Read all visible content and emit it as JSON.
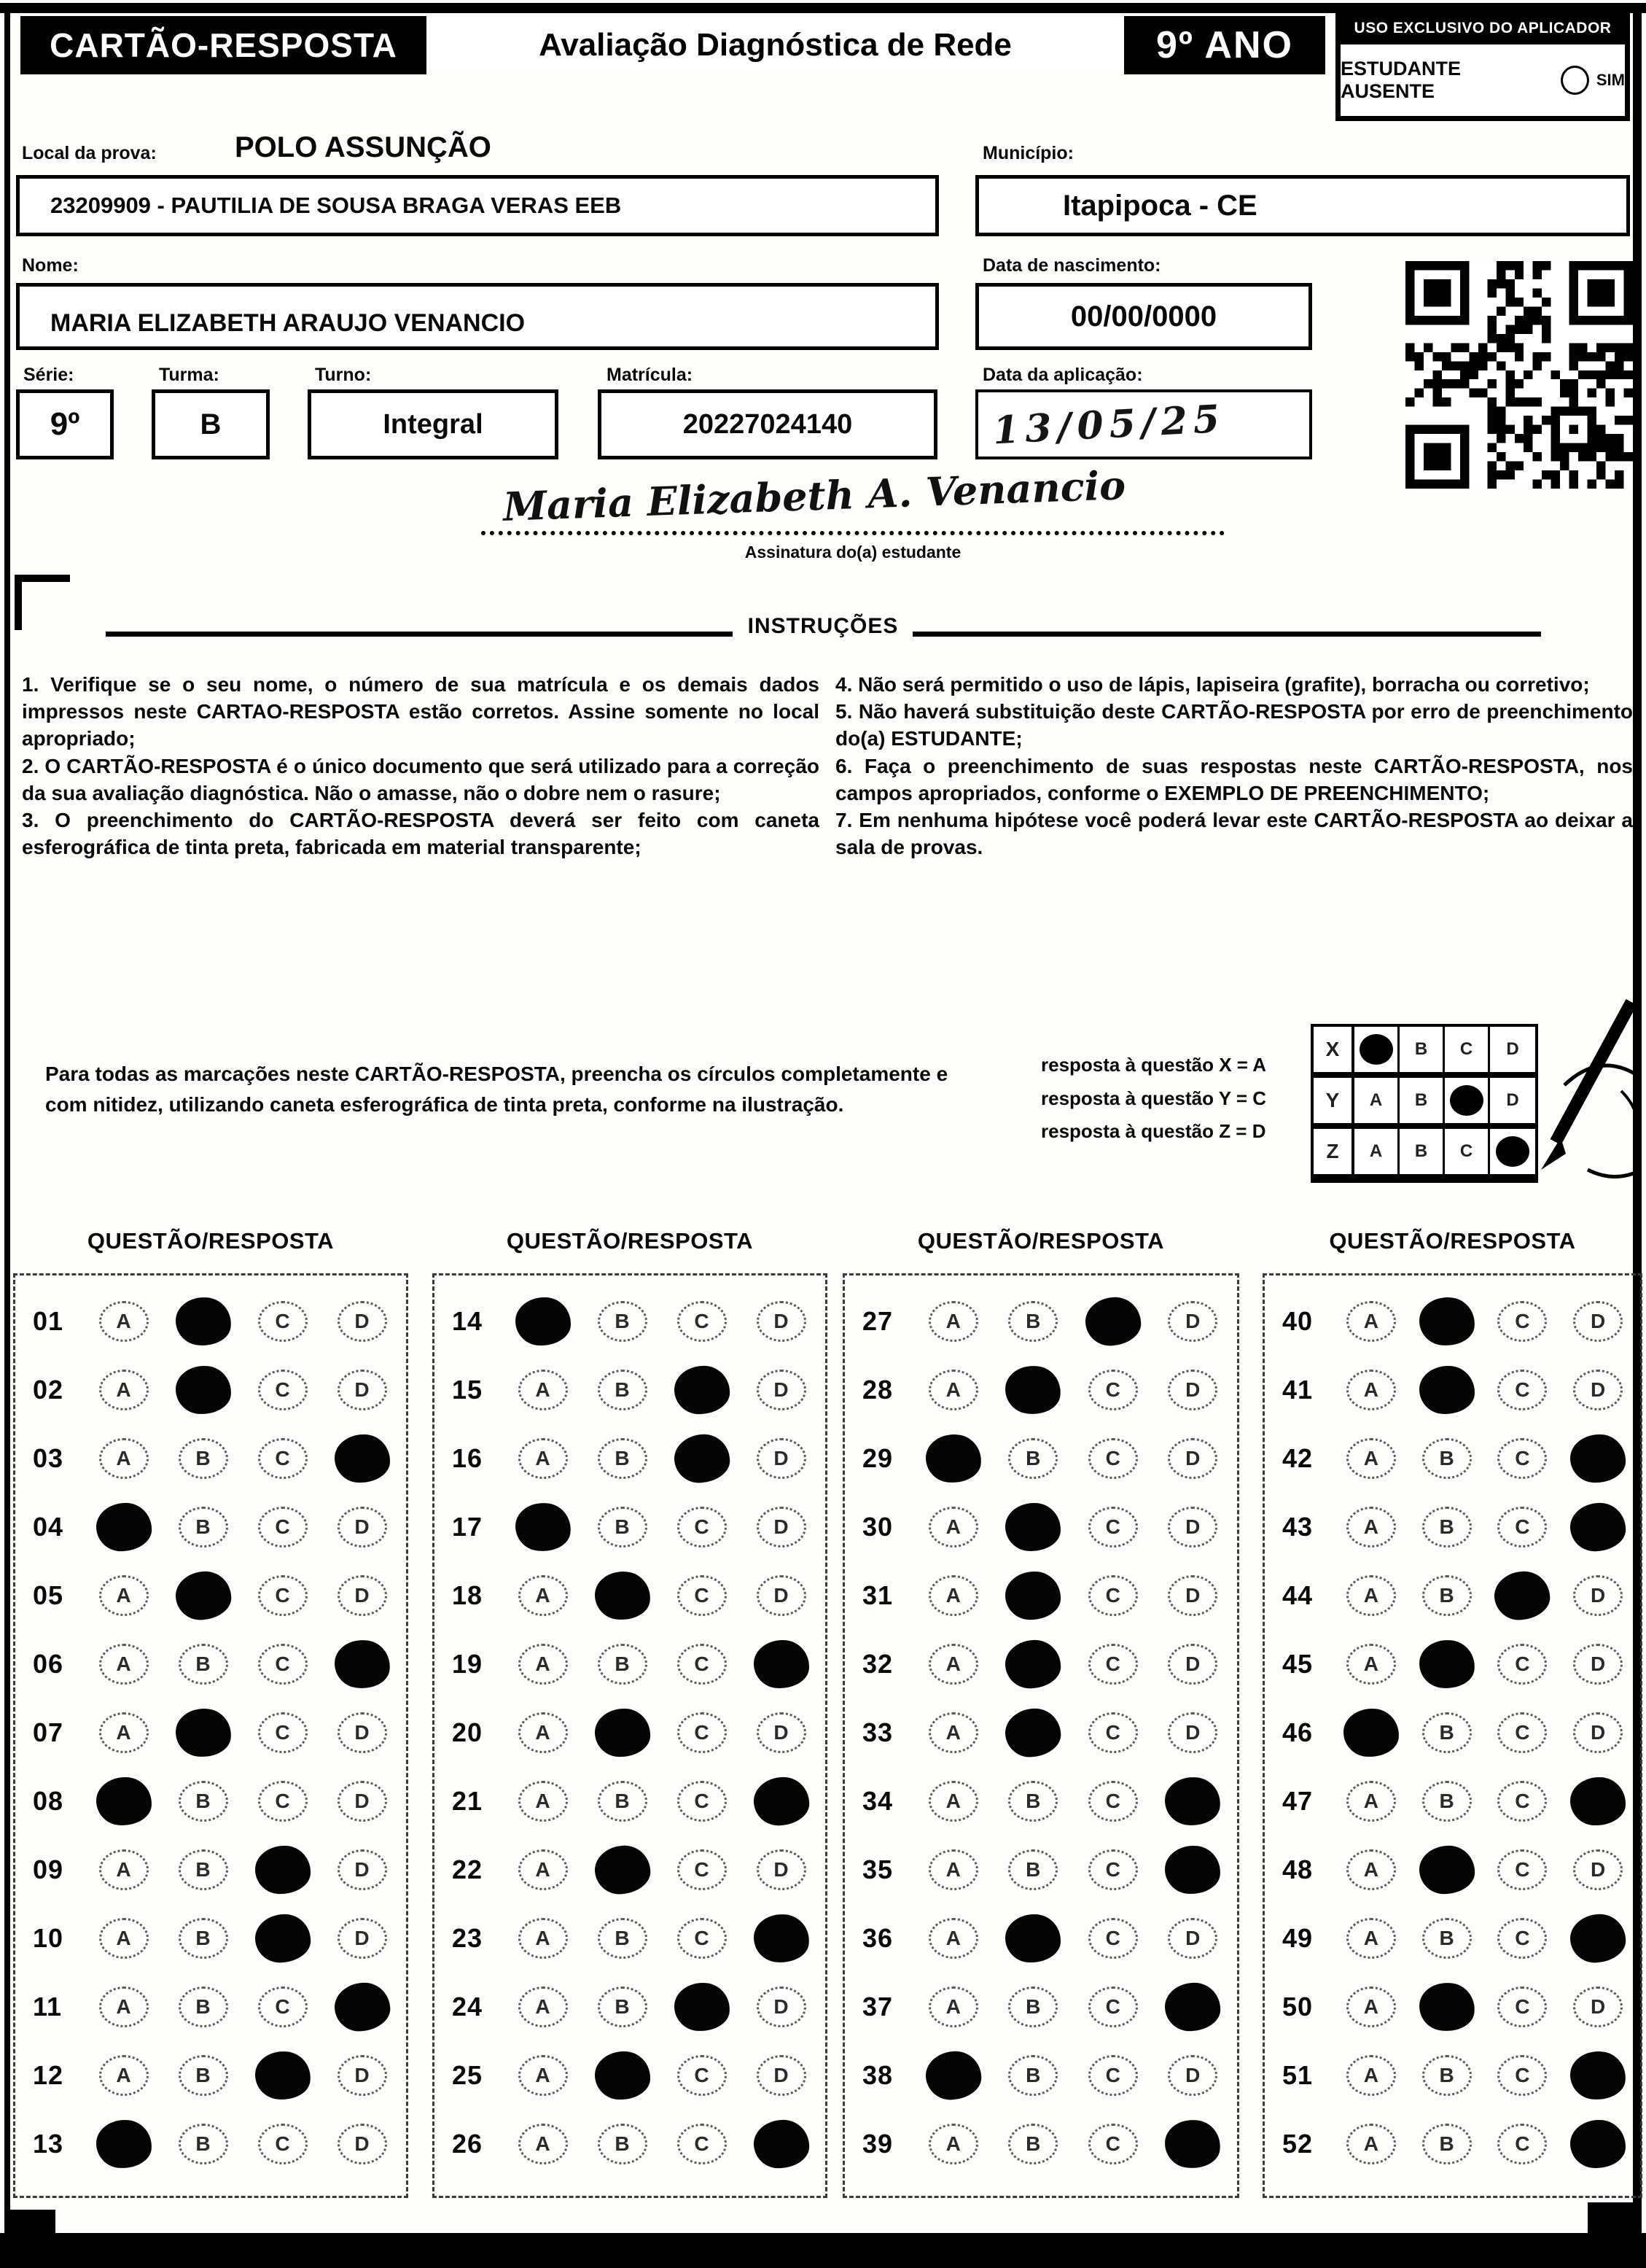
{
  "colors": {
    "ink": "#0a0a0a",
    "paper": "#fdfdfc"
  },
  "header": {
    "title": "CARTÃO-RESPOSTA",
    "subtitle": "Avaliação Diagnóstica de Rede",
    "grade": "9º ANO",
    "aplicador_title": "USO EXCLUSIVO DO APLICADOR",
    "ausente_label": "ESTUDANTE AUSENTE",
    "sim_label": "SIM"
  },
  "fields": {
    "local_label": "Local da prova:",
    "local_value": "POLO ASSUNÇÃO",
    "escola_value": "23209909 - PAUTILIA DE SOUSA BRAGA VERAS EEB",
    "municipio_label": "Município:",
    "municipio_value": "Itapipoca - CE",
    "nome_label": "Nome:",
    "nome_value": "MARIA ELIZABETH ARAUJO VENANCIO",
    "nascimento_label": "Data de nascimento:",
    "nascimento_value": "00/00/0000",
    "serie_label": "Série:",
    "serie_value": "9º",
    "turma_label": "Turma:",
    "turma_value": "B",
    "turno_label": "Turno:",
    "turno_value": "Integral",
    "matricula_label": "Matrícula:",
    "matricula_value": "20227024140",
    "aplicacao_label": "Data da aplicação:",
    "aplicacao_value": "13/05/25",
    "assinatura_value": "Maria Elizabeth A. Venancio",
    "assinatura_label": "Assinatura do(a) estudante"
  },
  "instructions": {
    "title": "INSTRUÇÕES",
    "left": [
      "1. Verifique se o seu nome, o número de sua matrícula e os demais dados impressos neste CARTAO-RESPOSTA estão corretos. Assine somente no local apropriado;",
      "2. O CARTÃO-RESPOSTA é o único documento que será utilizado para a correção da sua avaliação diagnóstica. Não o amasse, não o dobre nem o rasure;",
      "3. O preenchimento do CARTÃO-RESPOSTA deverá ser feito com caneta esferográfica de tinta preta, fabricada em material transparente;"
    ],
    "right": [
      "4. Não será permitido o uso de lápis, lapiseira (grafite), borracha ou corretivo;",
      "5. Não haverá substituição deste CARTÃO-RESPOSTA por erro de preenchimento do(a) ESTUDANTE;",
      "6. Faça o preenchimento de suas respostas neste CARTÃO-RESPOSTA, nos campos apropriados, conforme o EXEMPLO DE PREENCHIMENTO;",
      "7. Em nenhuma hipótese você poderá levar este CARTÃO-RESPOSTA ao deixar a sala de provas."
    ]
  },
  "example": {
    "paragraph": "Para todas as marcações neste CARTÃO-RESPOSTA, preencha os círculos completamente e com nitidez, utilizando caneta esferográfica de tinta preta, conforme na ilustração.",
    "legend": [
      "resposta à questão X = A",
      "resposta à questão Y = C",
      "resposta à questão Z = D"
    ],
    "options": [
      "A",
      "B",
      "C",
      "D"
    ],
    "rows": [
      {
        "label": "X",
        "answer": "A"
      },
      {
        "label": "Y",
        "answer": "C"
      },
      {
        "label": "Z",
        "answer": "D"
      }
    ]
  },
  "answers": {
    "column_header": "QUESTÃO/RESPOSTA",
    "options": [
      "A",
      "B",
      "C",
      "D"
    ],
    "columns": [
      [
        {
          "n": "01",
          "a": "B"
        },
        {
          "n": "02",
          "a": "B"
        },
        {
          "n": "03",
          "a": "D"
        },
        {
          "n": "04",
          "a": "A"
        },
        {
          "n": "05",
          "a": "B"
        },
        {
          "n": "06",
          "a": "D"
        },
        {
          "n": "07",
          "a": "B"
        },
        {
          "n": "08",
          "a": "A"
        },
        {
          "n": "09",
          "a": "C"
        },
        {
          "n": "10",
          "a": "C"
        },
        {
          "n": "11",
          "a": "D"
        },
        {
          "n": "12",
          "a": "C"
        },
        {
          "n": "13",
          "a": "A"
        }
      ],
      [
        {
          "n": "14",
          "a": "A"
        },
        {
          "n": "15",
          "a": "C"
        },
        {
          "n": "16",
          "a": "C"
        },
        {
          "n": "17",
          "a": "A"
        },
        {
          "n": "18",
          "a": "B"
        },
        {
          "n": "19",
          "a": "D"
        },
        {
          "n": "20",
          "a": "B"
        },
        {
          "n": "21",
          "a": "D"
        },
        {
          "n": "22",
          "a": "B"
        },
        {
          "n": "23",
          "a": "D"
        },
        {
          "n": "24",
          "a": "C"
        },
        {
          "n": "25",
          "a": "B"
        },
        {
          "n": "26",
          "a": "D"
        }
      ],
      [
        {
          "n": "27",
          "a": "C"
        },
        {
          "n": "28",
          "a": "B"
        },
        {
          "n": "29",
          "a": "A"
        },
        {
          "n": "30",
          "a": "B"
        },
        {
          "n": "31",
          "a": "B"
        },
        {
          "n": "32",
          "a": "B"
        },
        {
          "n": "33",
          "a": "B"
        },
        {
          "n": "34",
          "a": "D"
        },
        {
          "n": "35",
          "a": "D"
        },
        {
          "n": "36",
          "a": "B"
        },
        {
          "n": "37",
          "a": "D"
        },
        {
          "n": "38",
          "a": "A"
        },
        {
          "n": "39",
          "a": "D"
        }
      ],
      [
        {
          "n": "40",
          "a": "B"
        },
        {
          "n": "41",
          "a": "B"
        },
        {
          "n": "42",
          "a": "D"
        },
        {
          "n": "43",
          "a": "D"
        },
        {
          "n": "44",
          "a": "C"
        },
        {
          "n": "45",
          "a": "B"
        },
        {
          "n": "46",
          "a": "A"
        },
        {
          "n": "47",
          "a": "D"
        },
        {
          "n": "48",
          "a": "B"
        },
        {
          "n": "49",
          "a": "D"
        },
        {
          "n": "50",
          "a": "B"
        },
        {
          "n": "51",
          "a": "D"
        },
        {
          "n": "52",
          "a": "D"
        }
      ]
    ]
  }
}
